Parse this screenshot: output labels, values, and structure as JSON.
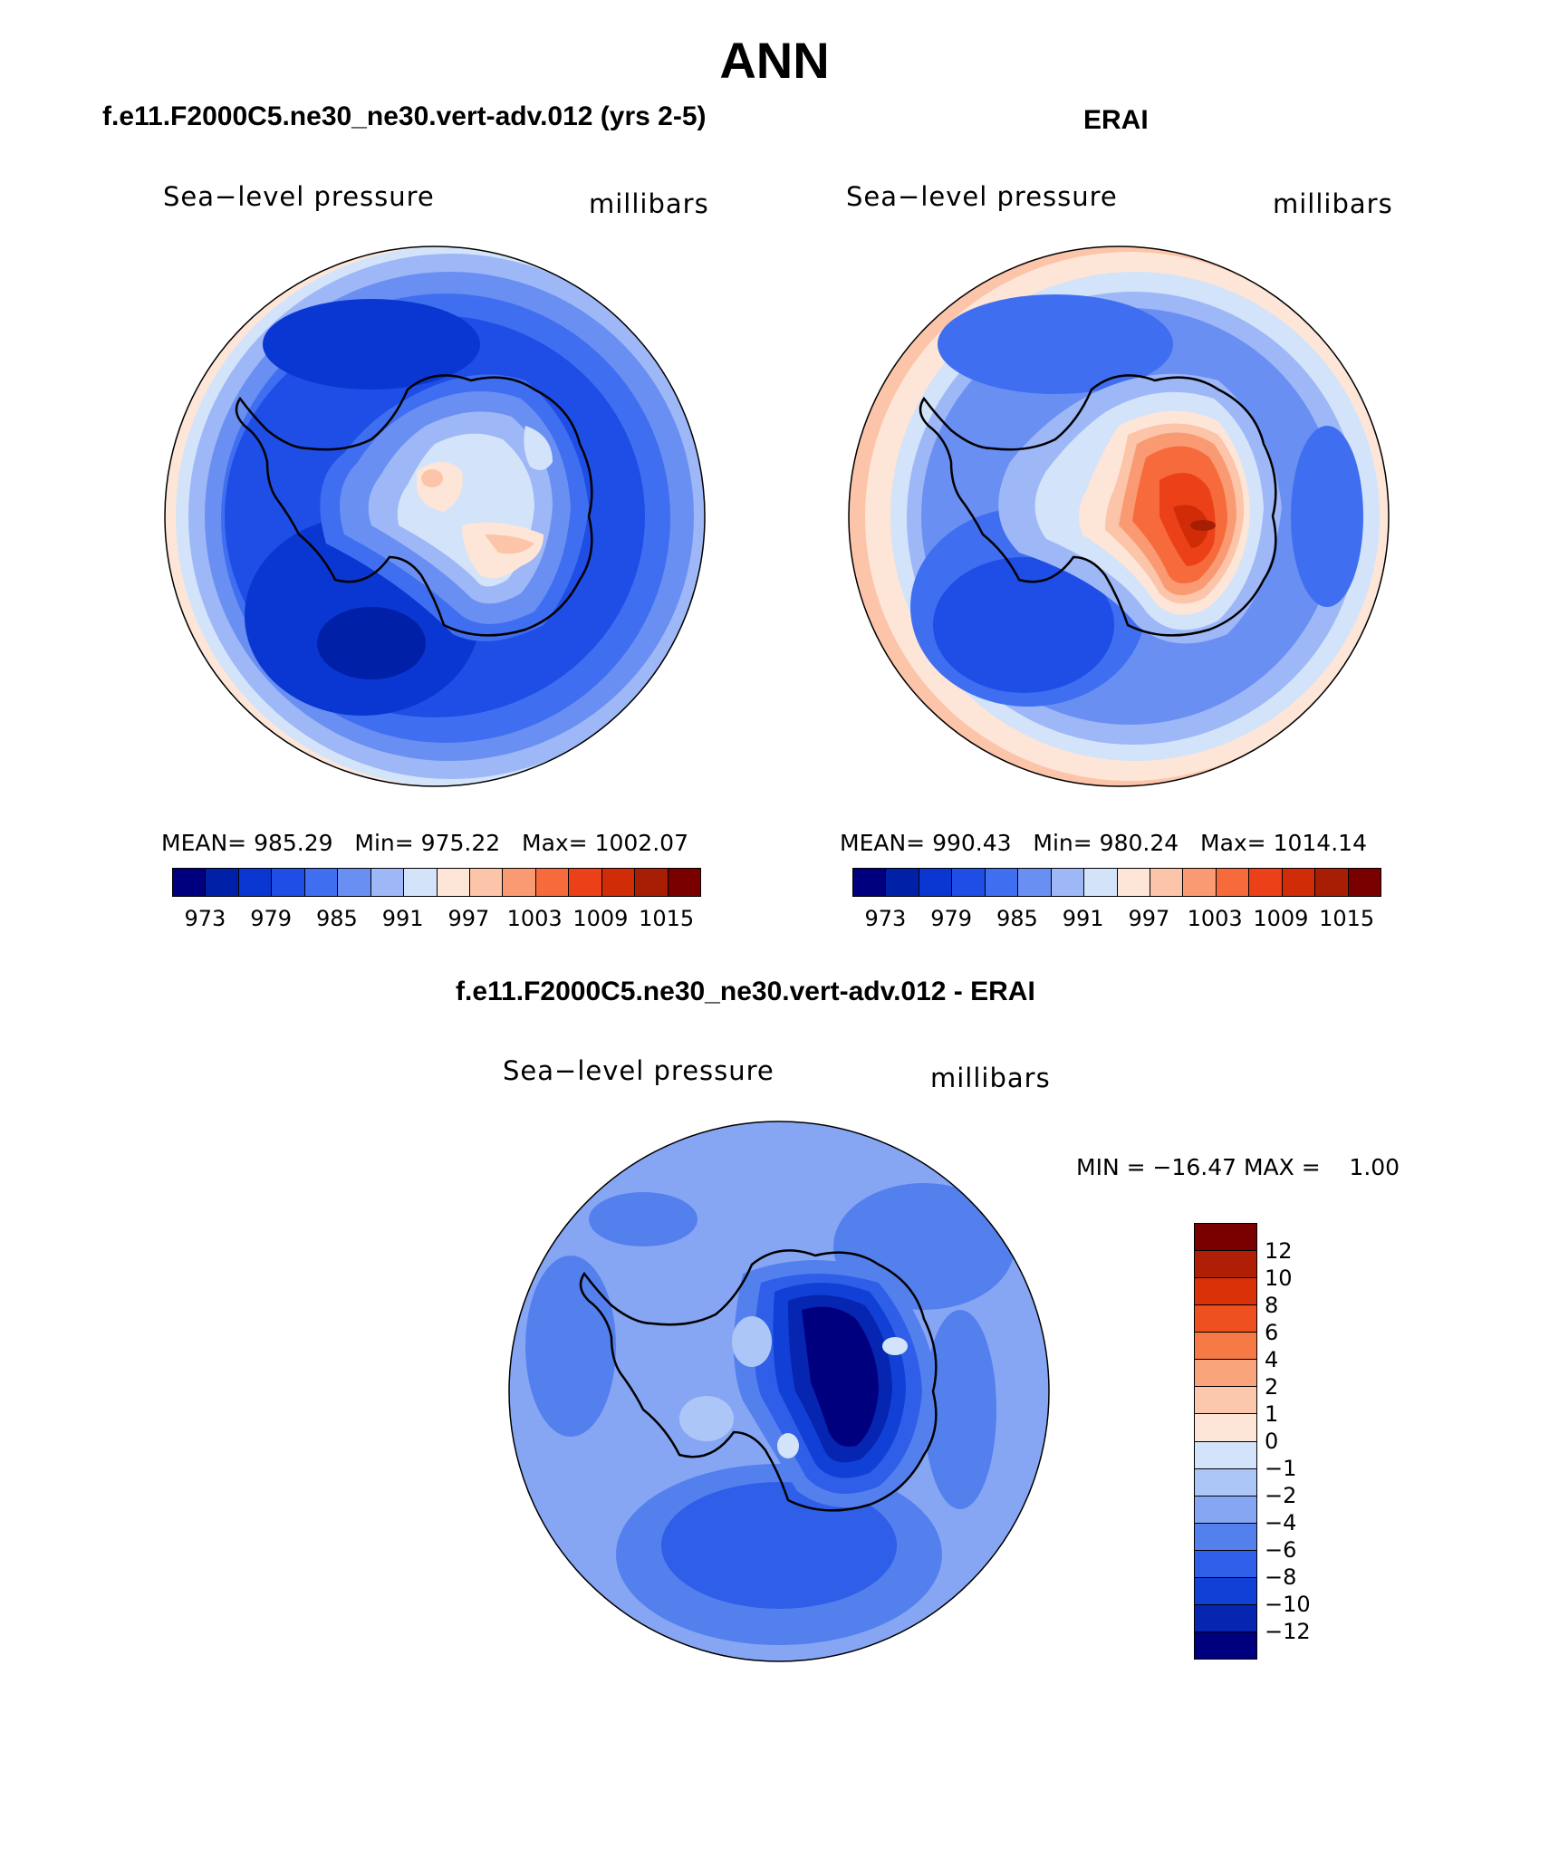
{
  "title": "ANN",
  "panels": {
    "model": {
      "subtitle": "f.e11.F2000C5.ne30_ne30.vert-adv.012 (yrs 2-5)",
      "variable": "Sea−level pressure",
      "units": "millibars",
      "stats": {
        "mean_label": "MEAN=",
        "mean": "985.29",
        "min_label": "Min=",
        "min": "975.22",
        "max_label": "Max=",
        "max": "1002.07"
      }
    },
    "obs": {
      "subtitle": "ERAI",
      "variable": "Sea−level pressure",
      "units": "millibars",
      "stats": {
        "mean_label": "MEAN=",
        "mean": "990.43",
        "min_label": "Min=",
        "min": "980.24",
        "max_label": "Max=",
        "max": "1014.14"
      }
    },
    "diff": {
      "subtitle": "f.e11.F2000C5.ne30_ne30.vert-adv.012 - ERAI",
      "variable": "Sea−level pressure",
      "units": "millibars",
      "minmax": "MIN = −16.47 MAX =    1.00"
    }
  },
  "colorbar_abs": {
    "colors": [
      "#00007f",
      "#0020a8",
      "#0a37d2",
      "#1f4ee6",
      "#3f6ff0",
      "#6a8ff2",
      "#9db7f7",
      "#d3e3fa",
      "#fde6d7",
      "#fcc4a8",
      "#f99a73",
      "#f66a3c",
      "#ec4118",
      "#d02c08",
      "#a81e05",
      "#7a0000"
    ],
    "ticks": [
      "973",
      "979",
      "985",
      "991",
      "997",
      "1003",
      "1009",
      "1015"
    ]
  },
  "colorbar_diff": {
    "colors": [
      "#7a0000",
      "#b01e05",
      "#d93208",
      "#ef5020",
      "#f67a46",
      "#f9a47b",
      "#fcc8ad",
      "#fde6d7",
      "#d3e3fa",
      "#adc6f8",
      "#86a6f4",
      "#5480ee",
      "#2f5ee9",
      "#1140d6",
      "#0625b0",
      "#00007f"
    ],
    "ticks": [
      "12",
      "10",
      "8",
      "6",
      "4",
      "2",
      "1",
      "0",
      "−1",
      "−2",
      "−4",
      "−6",
      "−8",
      "−10",
      "−12"
    ]
  },
  "map_colors": {
    "model_bg": "#2f5ee9",
    "obs_bg": "#6a8ff2",
    "diff_bg": "#86a6f4"
  }
}
